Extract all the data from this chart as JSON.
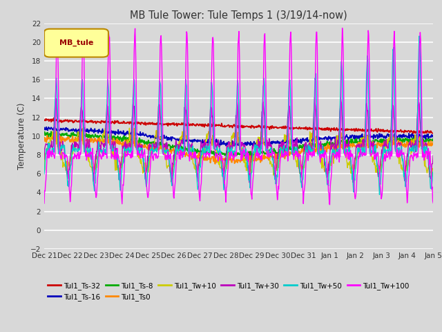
{
  "title": "MB Tule Tower: Tule Temps 1 (3/19/14-now)",
  "ylabel": "Temperature (C)",
  "ylim": [
    -2,
    22
  ],
  "yticks": [
    -2,
    0,
    2,
    4,
    6,
    8,
    10,
    12,
    14,
    16,
    18,
    20,
    22
  ],
  "x_start": 0,
  "x_end": 45,
  "bg_color": "#d8d8d8",
  "grid_color": "#ffffff",
  "series_colors": {
    "Tul1_Ts-32": "#cc0000",
    "Tul1_Ts-16": "#0000bb",
    "Tul1_Ts-8": "#00aa00",
    "Tul1_Ts0": "#ff8800",
    "Tul1_Tw+10": "#cccc00",
    "Tul1_Tw+30": "#bb00bb",
    "Tul1_Tw+50": "#00cccc",
    "Tul1_Tw+100": "#ff00ff"
  },
  "x_tick_labels": [
    "Dec 21",
    "Dec 22",
    "Dec 23",
    "Dec 24",
    "Dec 25",
    "Dec 26",
    "Dec 27",
    "Dec 28",
    "Dec 29",
    "Dec 30",
    "Dec 31",
    "Jan 1",
    "Jan 2",
    "Jan 3",
    "Jan 4",
    "Jan 5"
  ],
  "x_tick_positions": [
    0,
    3,
    6,
    9,
    12,
    15,
    18,
    21,
    24,
    27,
    30,
    33,
    36,
    39,
    42,
    45
  ],
  "legend_label": "MB_tule",
  "legend_bg": "#ffff99",
  "legend_edge": "#bb8800",
  "lw": 1.0
}
